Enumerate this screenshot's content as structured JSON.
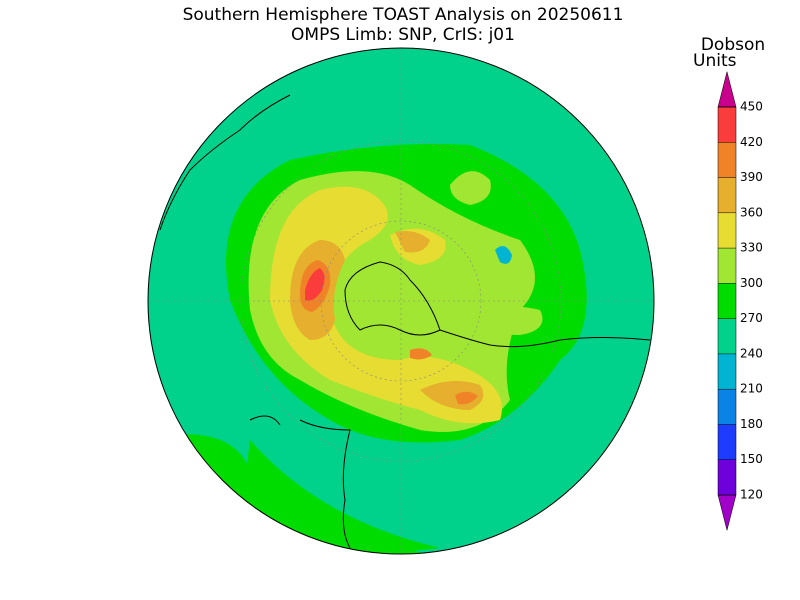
{
  "title": "Southern Hemisphere TOAST Analysis on 20250611",
  "subtitle": "OMPS Limb: SNP, CrIS: j01",
  "colorbar": {
    "label": [
      "Dobson",
      "Units"
    ],
    "ticks": [
      120,
      150,
      180,
      210,
      240,
      270,
      300,
      330,
      360,
      390,
      420,
      450
    ],
    "colors": [
      "#a000c8",
      "#6e00dc",
      "#1e3cff",
      "#0a82e6",
      "#00b4d2",
      "#00d28c",
      "#00dc00",
      "#a0e632",
      "#e6dc32",
      "#e6af2d",
      "#f08228",
      "#fa3c3c",
      "#c8008c"
    ]
  }
}
